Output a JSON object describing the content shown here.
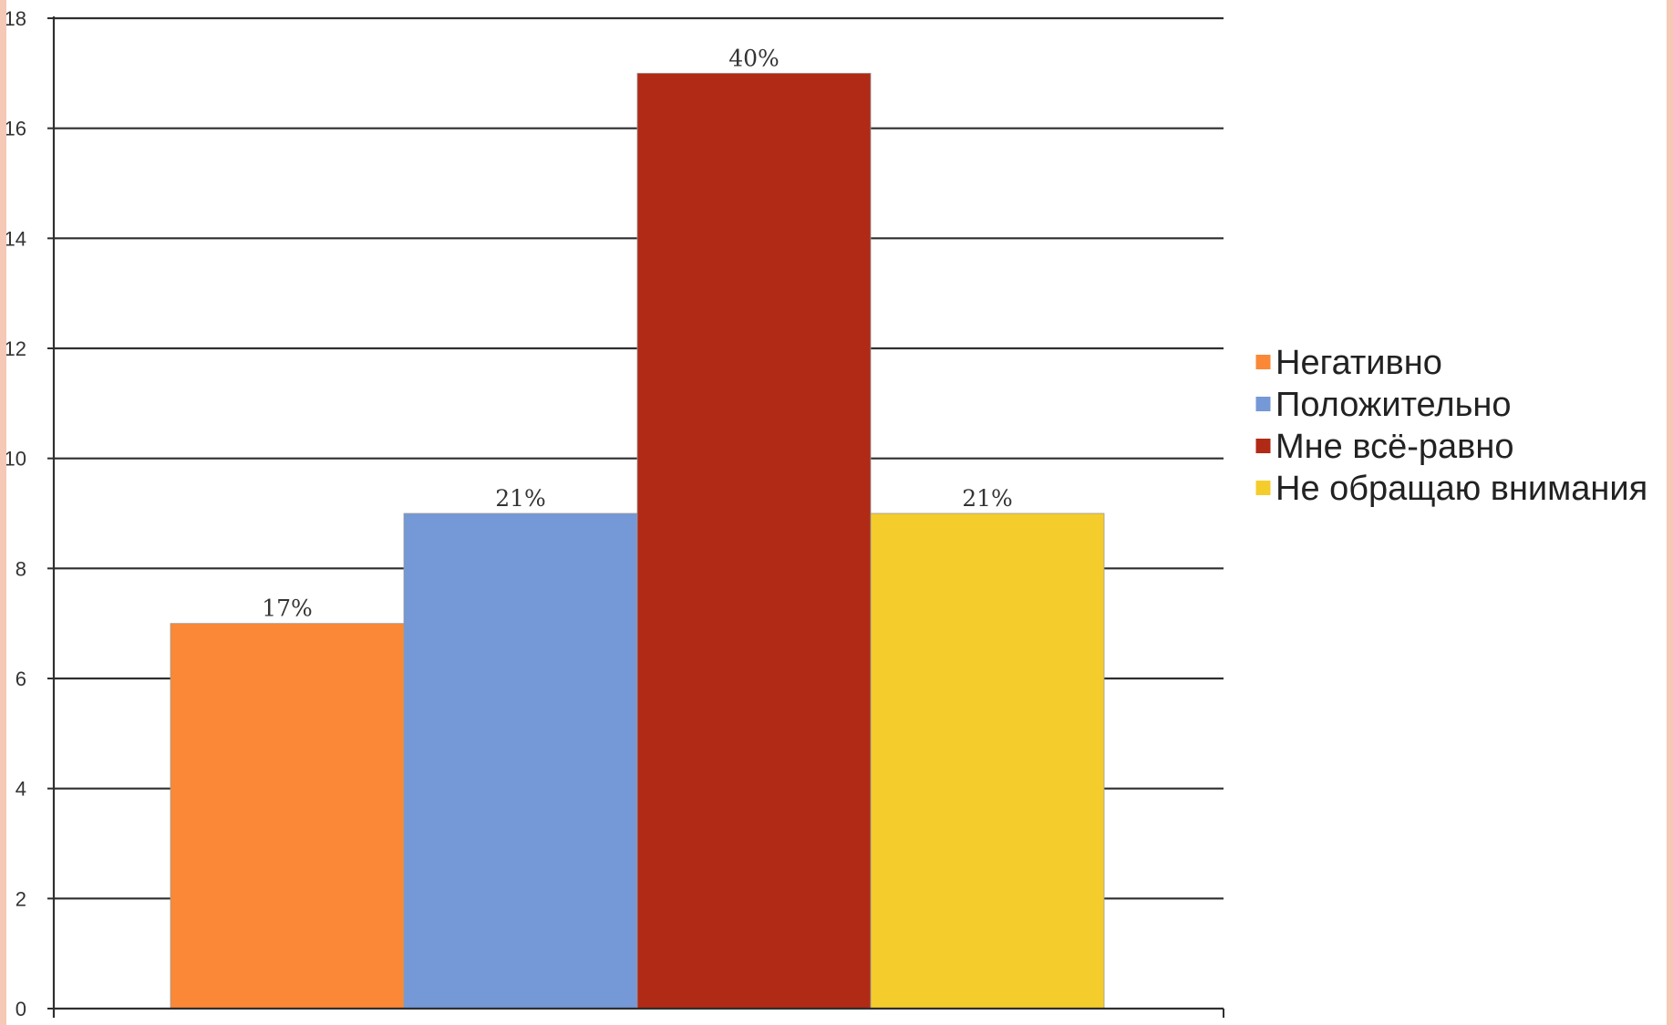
{
  "chart_data": {
    "type": "bar",
    "categories": [
      "Негативно",
      "Положительно",
      "Мне всё-равно",
      "Не обращаю внимания"
    ],
    "series": [
      {
        "values": [
          7,
          9,
          17,
          9
        ],
        "data_labels": [
          "17%",
          "21%",
          "40%",
          "21%"
        ]
      }
    ],
    "colors": [
      "#fa8836",
      "#7598d6",
      "#b02a16",
      "#f4cd2d"
    ],
    "ylim": [
      0,
      18
    ],
    "yticks": [
      0,
      2,
      4,
      6,
      8,
      10,
      12,
      14,
      16,
      18
    ],
    "grid": true,
    "legend": {
      "placement": "right",
      "entries": [
        "Негативно",
        "Положительно",
        "Мне всё-равно",
        "Не обращаю внимания"
      ]
    },
    "title": "",
    "xlabel": "",
    "ylabel": ""
  }
}
